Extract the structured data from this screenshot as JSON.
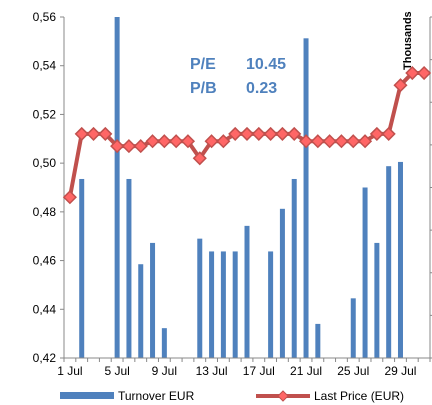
{
  "chart_data": {
    "type": "bar+line",
    "x": [
      "1 Jul",
      "2 Jul",
      "3 Jul",
      "4 Jul",
      "5 Jul",
      "6 Jul",
      "7 Jul",
      "8 Jul",
      "9 Jul",
      "10 Jul",
      "11 Jul",
      "12 Jul",
      "13 Jul",
      "14 Jul",
      "15 Jul",
      "16 Jul",
      "17 Jul",
      "18 Jul",
      "19 Jul",
      "20 Jul",
      "21 Jul",
      "22 Jul",
      "23 Jul",
      "24 Jul",
      "25 Jul",
      "26 Jul",
      "27 Jul",
      "28 Jul",
      "29 Jul",
      "30 Jul",
      "31 Jul"
    ],
    "xtick_labels": [
      "1 Jul",
      "5 Jul",
      "9 Jul",
      "13 Jul",
      "17 Jul",
      "21 Jul",
      "25 Jul",
      "29 Jul"
    ],
    "series": [
      {
        "name": "Turnover EUR",
        "type": "bar",
        "axis": "secondary",
        "color": "#4f81bd",
        "values": [
          0,
          42,
          0,
          0,
          80,
          42,
          22,
          27,
          7,
          0,
          0,
          28,
          25,
          25,
          25,
          31,
          0,
          25,
          35,
          42,
          75,
          8,
          0,
          0,
          14,
          40,
          27,
          45,
          46,
          0,
          0
        ]
      },
      {
        "name": "Last Price (EUR)",
        "type": "line",
        "axis": "primary",
        "color": "#c0504d",
        "marker_color": "#ff6666",
        "values": [
          0.486,
          0.512,
          0.512,
          0.512,
          0.507,
          0.507,
          0.507,
          0.509,
          0.509,
          0.509,
          0.509,
          0.502,
          0.509,
          0.509,
          0.512,
          0.512,
          0.512,
          0.512,
          0.512,
          0.512,
          0.509,
          0.509,
          0.509,
          0.509,
          0.509,
          0.509,
          0.512,
          0.512,
          0.532,
          0.537,
          0.537
        ]
      }
    ],
    "yaxis": {
      "min": 0.42,
      "max": 0.56,
      "step": 0.02,
      "tick_labels": [
        "0,42",
        "0,44",
        "0,46",
        "0,48",
        "0,50",
        "0,52",
        "0,54",
        "0,56"
      ],
      "color": "#c00000"
    },
    "y2axis": {
      "label": "Thousands",
      "max": 80
    },
    "annotations": [
      {
        "label": "P/E",
        "value": "10.45"
      },
      {
        "label": "P/B",
        "value": "0.23"
      }
    ],
    "annotation_color": "#4f81bd",
    "grid": false,
    "legend_position": "bottom"
  }
}
